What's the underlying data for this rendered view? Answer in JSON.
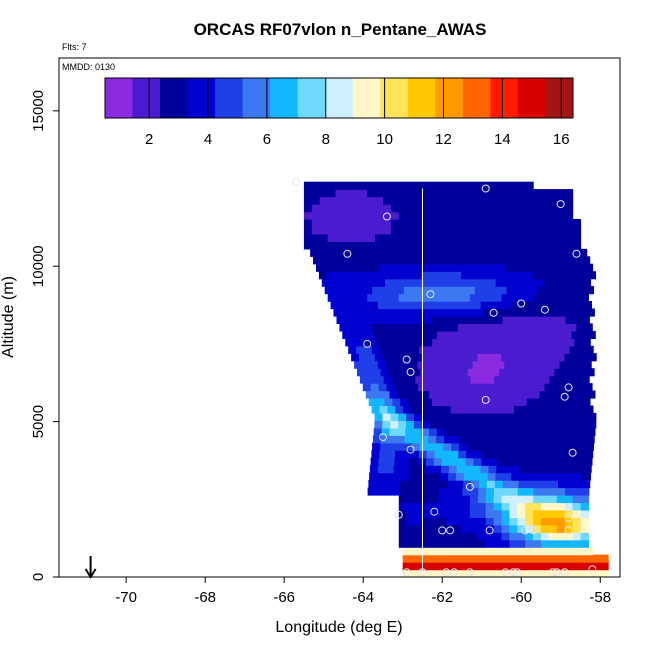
{
  "chart_data": {
    "type": "heatmap",
    "title": "ORCAS RF07vlon n_Pentane_AWAS",
    "annotation_flts": "Flts: 7",
    "annotation_mmdd": "MMDD: 0130",
    "xlabel": "Longitude (deg E)",
    "ylabel": "Altitude (m)",
    "xlim": [
      -71.7,
      -57.5
    ],
    "ylim": [
      0,
      16700
    ],
    "xticks": [
      -70,
      -68,
      -66,
      -64,
      -62,
      -60,
      -58
    ],
    "yticks": [
      0,
      5000,
      10000,
      15000
    ],
    "colorbar": {
      "min": 0.5,
      "max": 16.4,
      "ticks": [
        2,
        4,
        6,
        8,
        10,
        12,
        14,
        16
      ],
      "colors": [
        "#8a2be2",
        "#4b1ccf",
        "#00009a",
        "#0000d0",
        "#1f3fe8",
        "#3c78f0",
        "#12b7ff",
        "#6fd8ff",
        "#cfefff",
        "#fff7c8",
        "#ffe45a",
        "#ffc800",
        "#ff9a00",
        "#ff6600",
        "#ff1a00",
        "#d80000",
        "#a31515"
      ]
    },
    "vertical_line_lon": -62.5,
    "arrow_lon": -70.9,
    "sample_points": [
      {
        "lon": -65.7,
        "alt": 12700
      },
      {
        "lon": -60.9,
        "alt": 12500
      },
      {
        "lon": -59.0,
        "alt": 12000
      },
      {
        "lon": -63.4,
        "alt": 11600
      },
      {
        "lon": -64.4,
        "alt": 10400
      },
      {
        "lon": -58.6,
        "alt": 10400
      },
      {
        "lon": -62.3,
        "alt": 9100
      },
      {
        "lon": -60.0,
        "alt": 8800
      },
      {
        "lon": -59.4,
        "alt": 8600
      },
      {
        "lon": -60.7,
        "alt": 8500
      },
      {
        "lon": -63.9,
        "alt": 7500
      },
      {
        "lon": -62.9,
        "alt": 7000
      },
      {
        "lon": -62.8,
        "alt": 6600
      },
      {
        "lon": -58.8,
        "alt": 6100
      },
      {
        "lon": -60.9,
        "alt": 5700
      },
      {
        "lon": -58.9,
        "alt": 5800
      },
      {
        "lon": -63.5,
        "alt": 4500
      },
      {
        "lon": -62.8,
        "alt": 4100
      },
      {
        "lon": -58.7,
        "alt": 4000
      },
      {
        "lon": -61.3,
        "alt": 2900
      },
      {
        "lon": -62.2,
        "alt": 2100
      },
      {
        "lon": -63.1,
        "alt": 2000
      },
      {
        "lon": -58.8,
        "alt": 1900
      },
      {
        "lon": -62.0,
        "alt": 1500
      },
      {
        "lon": -61.8,
        "alt": 1500
      },
      {
        "lon": -60.8,
        "alt": 1500
      },
      {
        "lon": -59.9,
        "alt": 1500
      },
      {
        "lon": -59.7,
        "alt": 1500
      },
      {
        "lon": -58.8,
        "alt": 1500
      },
      {
        "lon": -62.9,
        "alt": 150
      },
      {
        "lon": -62.5,
        "alt": 150
      },
      {
        "lon": -61.9,
        "alt": 150
      },
      {
        "lon": -61.7,
        "alt": 150
      },
      {
        "lon": -61.3,
        "alt": 150
      },
      {
        "lon": -60.4,
        "alt": 150
      },
      {
        "lon": -60.2,
        "alt": 150
      },
      {
        "lon": -60.1,
        "alt": 150
      },
      {
        "lon": -59.2,
        "alt": 150
      },
      {
        "lon": -59.1,
        "alt": 150
      },
      {
        "lon": -58.9,
        "alt": 150
      },
      {
        "lon": -58.2,
        "alt": 250
      }
    ]
  }
}
